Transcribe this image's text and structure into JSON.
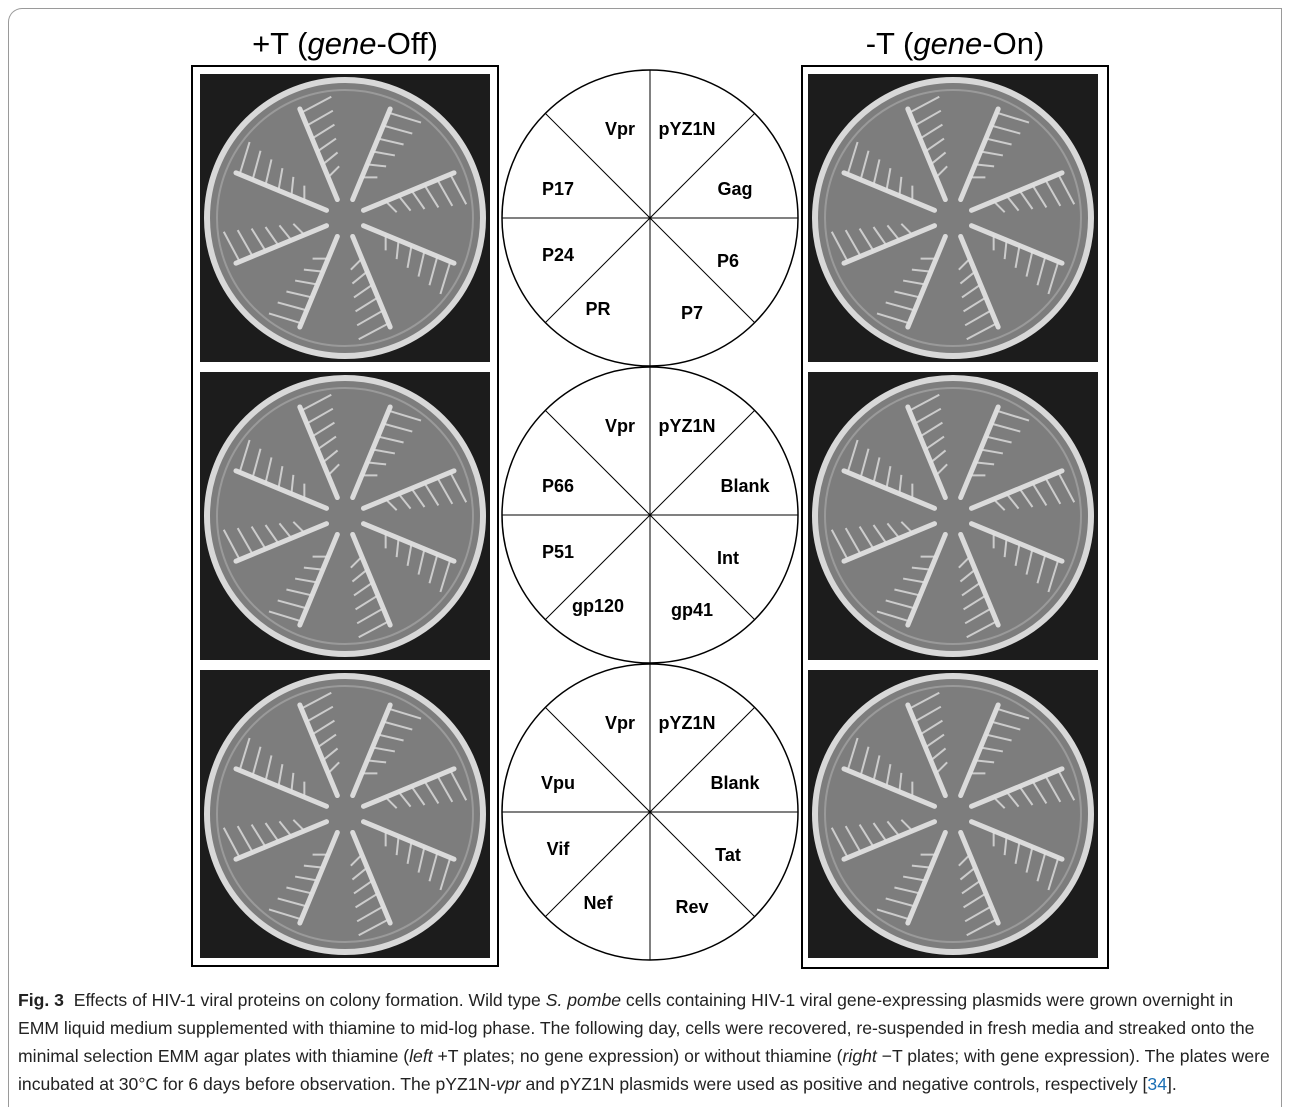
{
  "headers": {
    "left": [
      "+T (",
      "gene",
      "-Off)"
    ],
    "right": [
      "-T (",
      "gene",
      "-On)"
    ]
  },
  "diagrams": [
    {
      "labels": [
        "Vpr",
        "pYZ1N",
        "P17",
        "Gag",
        "P24",
        "P6",
        "PR",
        "P7"
      ]
    },
    {
      "labels": [
        "Vpr",
        "pYZ1N",
        "P66",
        "Blank",
        "P51",
        "Int",
        "gp120",
        "gp41"
      ]
    },
    {
      "labels": [
        "Vpr",
        "pYZ1N",
        "Vpu",
        "Blank",
        "Vif",
        "Tat",
        "Nef",
        "Rev"
      ]
    }
  ],
  "caption": {
    "label": "Fig. 3",
    "parts": [
      "Effects of HIV-1 viral proteins on colony formation. Wild type ",
      "S. pombe",
      " cells containing HIV-1 viral gene-expressing plasmids were grown overnight in EMM liquid medium supplemented with thiamine to mid-log phase. The following day, cells were recovered, re-suspended in fresh media and streaked onto the minimal selection EMM agar plates with thiamine (",
      "left",
      " +T plates; no gene expression) or without thiamine (",
      "right",
      " −T plates; with gene expression). The plates were incubated at 30°C for 6 days before observation. The pYZ1N-",
      "vpr",
      " and pYZ1N plasmids were used as positive and negative controls, respectively [",
      "34",
      "]."
    ]
  }
}
